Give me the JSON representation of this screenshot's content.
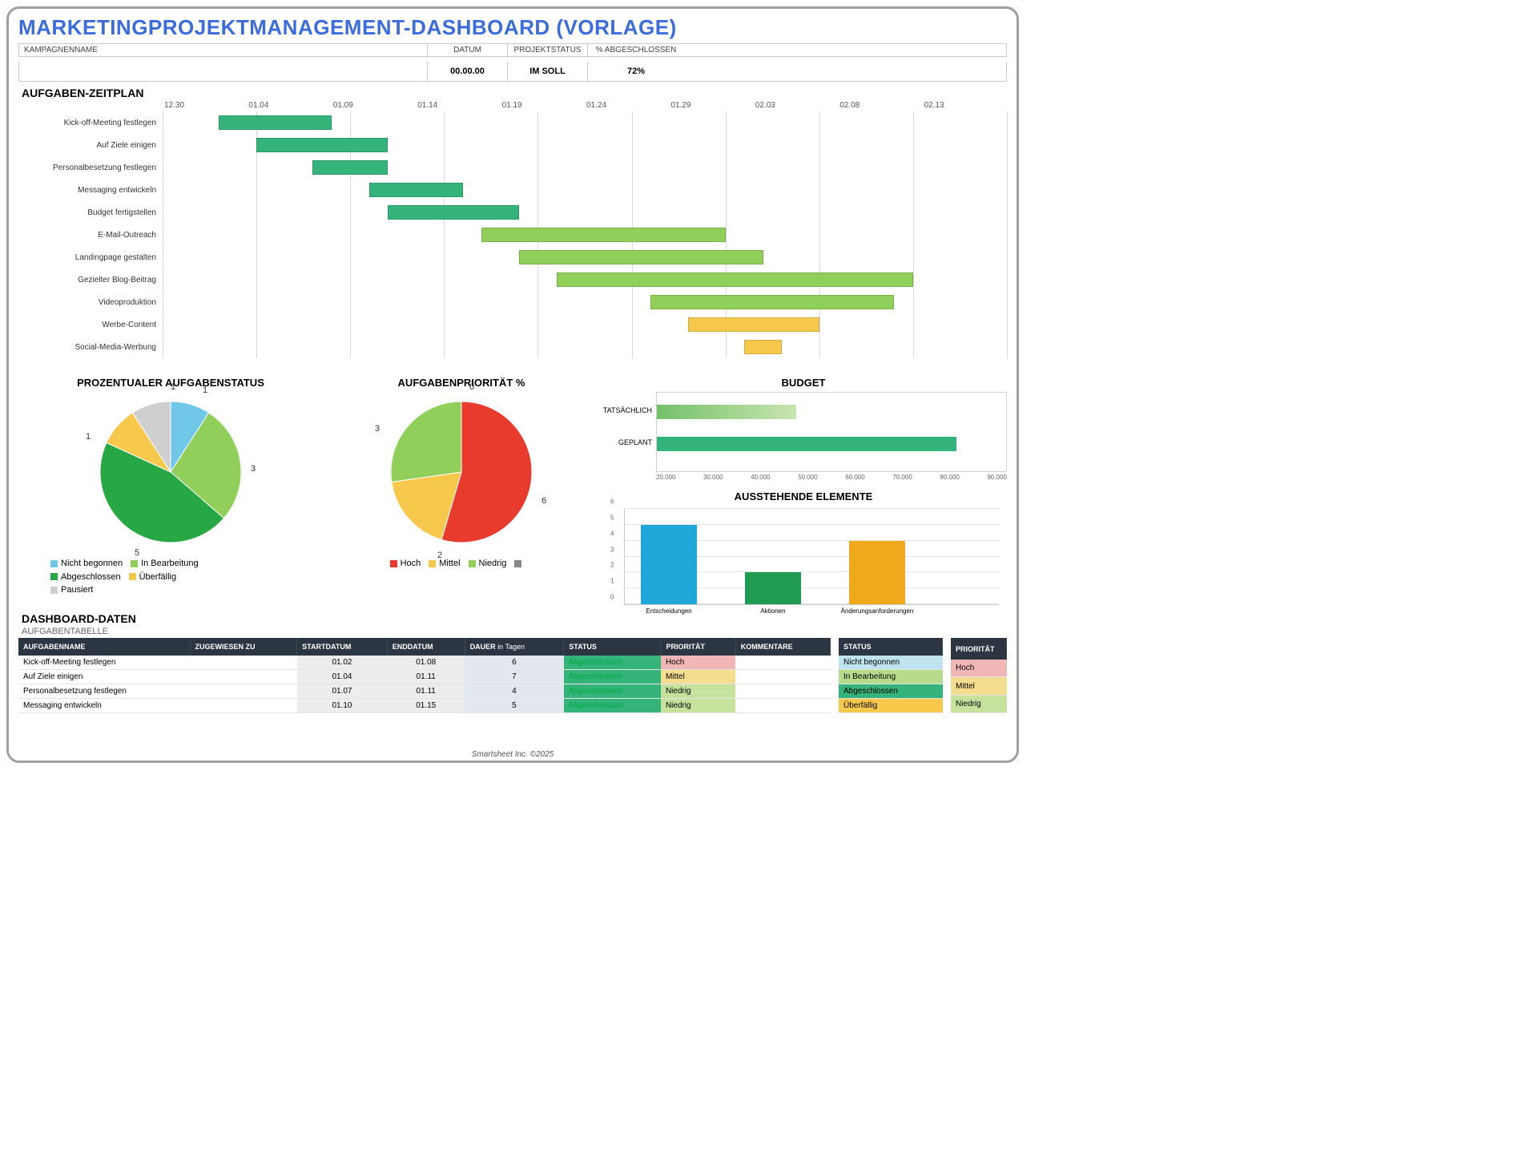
{
  "title": "MARKETINGPROJEKTMANAGEMENT-DASHBOARD (VORLAGE)",
  "header": {
    "labels": {
      "campaign": "KAMPAGNENNAME",
      "date": "DATUM",
      "status": "PROJEKTSTATUS",
      "pct": "% ABGESCHLOSSEN"
    },
    "values": {
      "campaign": "",
      "date": "00.00.00",
      "status": "IM SOLL",
      "pct": "72%"
    }
  },
  "gantt": {
    "title": "AUFGABEN-ZEITPLAN",
    "dates": [
      "12.30",
      "01.04",
      "01.09",
      "01.14",
      "01.19",
      "01.24",
      "01.29",
      "02.03",
      "02.08",
      "02.13"
    ],
    "start_num": 1230,
    "span_days": 45,
    "bar_colors": {
      "dark": "#34b37a",
      "mid": "#8fcf5a",
      "yellow": "#f6c84c"
    },
    "tasks": [
      {
        "label": "Kick-off-Meeting festlegen",
        "start": 3,
        "dur": 6,
        "shade": "dark"
      },
      {
        "label": "Auf Ziele einigen",
        "start": 5,
        "dur": 7,
        "shade": "dark"
      },
      {
        "label": "Personalbesetzung festlegen",
        "start": 8,
        "dur": 4,
        "shade": "dark"
      },
      {
        "label": "Messaging entwickeln",
        "start": 11,
        "dur": 5,
        "shade": "dark"
      },
      {
        "label": "Budget fertigstellen",
        "start": 12,
        "dur": 7,
        "shade": "dark"
      },
      {
        "label": "E-Mail-Outreach",
        "start": 17,
        "dur": 13,
        "shade": "mid"
      },
      {
        "label": "Landingpage gestalten",
        "start": 19,
        "dur": 13,
        "shade": "mid"
      },
      {
        "label": "Gezielter Blog-Beitrag",
        "start": 21,
        "dur": 19,
        "shade": "mid"
      },
      {
        "label": "Videoproduktion",
        "start": 26,
        "dur": 13,
        "shade": "mid"
      },
      {
        "label": "Werbe-Content",
        "start": 28,
        "dur": 7,
        "shade": "yellow"
      },
      {
        "label": "Social-Media-Werbung",
        "start": 31,
        "dur": 2,
        "shade": "yellow"
      }
    ]
  },
  "status_pie": {
    "title": "PROZENTUALER AUFGABENSTATUS",
    "slices": [
      {
        "label": "Nicht begonnen",
        "value": 1,
        "color": "#6fc8e8"
      },
      {
        "label": "In Bearbeitung",
        "value": 3,
        "color": "#8fcf5a"
      },
      {
        "label": "Abgeschlossen",
        "value": 5,
        "color": "#28a745"
      },
      {
        "label": "Überfällig",
        "value": 1,
        "color": "#f6c84c"
      },
      {
        "label": "Pausiert",
        "value": 1,
        "color": "#cfcfcf"
      }
    ],
    "legend_footer": "Pausiert"
  },
  "priority_pie": {
    "title": "AUFGABENPRIORITÄT %",
    "slices": [
      {
        "label": "Hoch",
        "value": 6,
        "color": "#e93a2e",
        "num": "6"
      },
      {
        "label": "Mittel",
        "value": 2,
        "color": "#f6c84c",
        "num": "2"
      },
      {
        "label": "Niedrig",
        "value": 3,
        "color": "#8fcf5a",
        "num": "3"
      },
      {
        "label": "",
        "value": 0,
        "color": "#888888",
        "num": "0"
      }
    ]
  },
  "budget": {
    "title": "BUDGET",
    "axis": [
      "20.000",
      "30.000",
      "40.000",
      "50.000",
      "60.000",
      "70.000",
      "80.000",
      "90.000"
    ],
    "axis_min": 20000,
    "axis_max": 90000,
    "rows": [
      {
        "label": "TATSÄCHLICH",
        "value": 48000,
        "color": "linear-gradient(90deg,#74c06a,#c8e6b0)"
      },
      {
        "label": "GEPLANT",
        "value": 80000,
        "color": "#34b37a"
      }
    ]
  },
  "pending": {
    "title": "AUSSTEHENDE ELEMENTE",
    "ymax": 6,
    "bars": [
      {
        "label": "Entscheidungen",
        "value": 5,
        "color": "#1fa7d9"
      },
      {
        "label": "Aktionen",
        "value": 2,
        "color": "#1f9b52"
      },
      {
        "label": "Änderungsanforderungen",
        "value": 4,
        "color": "#f0a81c"
      }
    ]
  },
  "data_section": {
    "title": "DASHBOARD-DATEN",
    "subtitle": "AUFGABENTABELLE",
    "headers": [
      "AUFGABENNAME",
      "ZUGEWIESEN ZU",
      "STARTDATUM",
      "ENDDATUM",
      "DAUER in Tagen",
      "STATUS",
      "PRIORITÄT",
      "KOMMENTARE"
    ],
    "rows": [
      {
        "name": "Kick-off-Meeting festlegen",
        "assigned": "",
        "start": "01.02",
        "end": "01.08",
        "dur": "6",
        "status": "Abgeschlossen",
        "status_bg": "#34b37a",
        "prio": "Hoch",
        "prio_bg": "#f1b7b7"
      },
      {
        "name": "Auf Ziele einigen",
        "assigned": "",
        "start": "01.04",
        "end": "01.11",
        "dur": "7",
        "status": "Abgeschlossen",
        "status_bg": "#34b37a",
        "prio": "Mittel",
        "prio_bg": "#f5dd8f"
      },
      {
        "name": "Personalbesetzung festlegen",
        "assigned": "",
        "start": "01.07",
        "end": "01.11",
        "dur": "4",
        "status": "Abgeschlossen",
        "status_bg": "#34b37a",
        "prio": "Niedrig",
        "prio_bg": "#c7e29c"
      },
      {
        "name": "Messaging entwickeln",
        "assigned": "",
        "start": "01.10",
        "end": "01.15",
        "dur": "5",
        "status": "Abgeschlossen",
        "status_bg": "#34b37a",
        "prio": "Niedrig",
        "prio_bg": "#c7e29c"
      }
    ],
    "side_status": {
      "header": "STATUS",
      "rows": [
        {
          "label": "Nicht begonnen",
          "bg": "#bfe3ef"
        },
        {
          "label": "In Bearbeitung",
          "bg": "#b6db8a"
        },
        {
          "label": "Abgeschlossen",
          "bg": "#34b37a"
        },
        {
          "label": "Überfällig",
          "bg": "#f6c84c"
        }
      ]
    },
    "side_prio": {
      "header": "PRIORITÄT",
      "rows": [
        {
          "label": "Hoch",
          "bg": "#f1b7b7"
        },
        {
          "label": "Mittel",
          "bg": "#f5dd8f"
        },
        {
          "label": "Niedrig",
          "bg": "#c7e29c"
        }
      ]
    }
  },
  "footer": "Smartsheet Inc. ©2025"
}
